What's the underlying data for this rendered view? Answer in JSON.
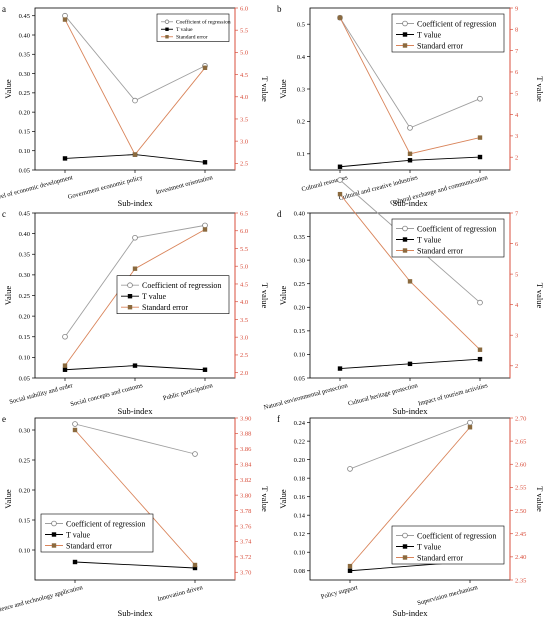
{
  "figure": {
    "panels_label": "six-panel regression figure"
  },
  "chart_data": [
    {
      "panel": "a",
      "type": "line",
      "categories": [
        "Level of economic development",
        "Government economic policy",
        "Investment orientation"
      ],
      "xlabel": "Sub-index",
      "ylabel": "Value",
      "y2label": "T value",
      "ylim": [
        0.05,
        0.47
      ],
      "yticks": [
        0.05,
        0.1,
        0.15,
        0.2,
        0.25,
        0.3,
        0.35,
        0.4,
        0.45
      ],
      "y2lim": [
        2.35,
        6.0
      ],
      "y2ticks": [
        2.5,
        3.0,
        3.5,
        4.0,
        4.5,
        5.0,
        5.5,
        6.0
      ],
      "series": [
        {
          "name": "Coefficient of regression",
          "axis": "left",
          "marker": "circle",
          "color": "#a0a0a0",
          "values": [
            0.45,
            0.23,
            0.32
          ]
        },
        {
          "name": "T value",
          "axis": "left",
          "marker": "square",
          "color": "#000000",
          "values": [
            0.08,
            0.09,
            0.07
          ]
        },
        {
          "name": "Standard error",
          "axis": "left",
          "marker": "square",
          "color": "#d9845a",
          "values": [
            0.44,
            0.09,
            0.315
          ]
        }
      ],
      "legend": "top-right",
      "legend_style": "small"
    },
    {
      "panel": "b",
      "type": "line",
      "categories": [
        "Cultural resources",
        "Cultural and creative industries",
        "Cultural exchange and communication"
      ],
      "xlabel": "Sub-index",
      "ylabel": "Value",
      "y2label": "T value",
      "ylim": [
        0.05,
        0.55
      ],
      "yticks": [
        0.1,
        0.2,
        0.3,
        0.4,
        0.5
      ],
      "y2lim": [
        1.4,
        9.0
      ],
      "y2ticks": [
        2,
        3,
        4,
        5,
        6,
        7,
        8,
        9
      ],
      "series": [
        {
          "name": "Coefficient of regression",
          "axis": "left",
          "marker": "circle",
          "color": "#a0a0a0",
          "values": [
            0.52,
            0.18,
            0.27
          ]
        },
        {
          "name": "T value",
          "axis": "left",
          "marker": "square",
          "color": "#000000",
          "values": [
            0.06,
            0.08,
            0.09
          ]
        },
        {
          "name": "Standard error",
          "axis": "left",
          "marker": "square",
          "color": "#d9845a",
          "values": [
            0.52,
            0.1,
            0.15
          ]
        }
      ],
      "legend": "top-right",
      "legend_style": "large"
    },
    {
      "panel": "c",
      "type": "line",
      "categories": [
        "Social stability and order",
        "Social concepts and customs",
        "Public participation"
      ],
      "xlabel": "Sub-index",
      "ylabel": "Value",
      "y2label": "T value",
      "ylim": [
        0.05,
        0.45
      ],
      "yticks": [
        0.05,
        0.1,
        0.15,
        0.2,
        0.25,
        0.3,
        0.35,
        0.4,
        0.45
      ],
      "y2lim": [
        1.85,
        6.5
      ],
      "y2ticks": [
        2.0,
        2.5,
        3.0,
        3.5,
        4.0,
        4.5,
        5.0,
        5.5,
        6.0,
        6.5
      ],
      "series": [
        {
          "name": "Coefficient of regression",
          "axis": "left",
          "marker": "circle",
          "color": "#a0a0a0",
          "values": [
            0.15,
            0.39,
            0.42
          ]
        },
        {
          "name": "T value",
          "axis": "left",
          "marker": "square",
          "color": "#000000",
          "values": [
            0.07,
            0.08,
            0.07
          ]
        },
        {
          "name": "Standard error",
          "axis": "left",
          "marker": "square",
          "color": "#d9845a",
          "values": [
            0.08,
            0.315,
            0.41
          ]
        }
      ],
      "legend": "middle-right",
      "legend_style": "large"
    },
    {
      "panel": "d",
      "type": "line",
      "categories": [
        "Natural environmental protection",
        "Cultural heritage protection",
        "Impact of tourism activities"
      ],
      "xlabel": "Sub-index",
      "ylabel": "Value",
      "y2label": "T value",
      "ylim": [
        0.05,
        0.4
      ],
      "yticks": [
        0.05,
        0.1,
        0.15,
        0.2,
        0.25,
        0.3,
        0.35,
        0.4
      ],
      "y2lim": [
        1.6,
        7.0
      ],
      "y2ticks": [
        2,
        3,
        4,
        5,
        6,
        7
      ],
      "series": [
        {
          "name": "Coefficient of regression",
          "axis": "left",
          "marker": "circle",
          "color": "#a0a0a0",
          "values": [
            0.47,
            0.34,
            0.21
          ]
        },
        {
          "name": "T value",
          "axis": "left",
          "marker": "square",
          "color": "#000000",
          "values": [
            0.07,
            0.08,
            0.09
          ]
        },
        {
          "name": "Standard error",
          "axis": "left",
          "marker": "square",
          "color": "#d9845a",
          "values": [
            0.44,
            0.255,
            0.11
          ]
        }
      ],
      "legend": "top-right",
      "legend_style": "large"
    },
    {
      "panel": "e",
      "type": "line",
      "categories": [
        "Science and technology application",
        "Innovation driven"
      ],
      "xlabel": "Sub-index",
      "ylabel": "Value",
      "y2label": "T value",
      "ylim": [
        0.05,
        0.32
      ],
      "yticks": [
        0.1,
        0.15,
        0.2,
        0.25,
        0.3
      ],
      "y2lim": [
        3.69,
        3.9
      ],
      "y2ticks": [
        3.7,
        3.72,
        3.74,
        3.76,
        3.78,
        3.8,
        3.82,
        3.84,
        3.86,
        3.88,
        3.9
      ],
      "series": [
        {
          "name": "Coefficient of regression",
          "axis": "left",
          "marker": "circle",
          "color": "#a0a0a0",
          "values": [
            0.31,
            0.26
          ]
        },
        {
          "name": "T value",
          "axis": "left",
          "marker": "square",
          "color": "#000000",
          "values": [
            0.08,
            0.07
          ]
        },
        {
          "name": "Standard error",
          "axis": "left",
          "marker": "square",
          "color": "#d9845a",
          "values": [
            0.3,
            0.075
          ]
        }
      ],
      "legend": "bottom-left",
      "legend_style": "large"
    },
    {
      "panel": "f",
      "type": "line",
      "categories": [
        "Policy support",
        "Supervision mechanism"
      ],
      "xlabel": "Sub-index",
      "ylabel": "Value",
      "y2label": "T value",
      "ylim": [
        0.07,
        0.245
      ],
      "yticks": [
        0.08,
        0.1,
        0.12,
        0.14,
        0.16,
        0.18,
        0.2,
        0.22,
        0.24
      ],
      "y2lim": [
        2.35,
        2.7
      ],
      "y2ticks": [
        2.35,
        2.4,
        2.45,
        2.5,
        2.55,
        2.6,
        2.65,
        2.7
      ],
      "series": [
        {
          "name": "Coefficient of regression",
          "axis": "left",
          "marker": "circle",
          "color": "#a0a0a0",
          "values": [
            0.19,
            0.24
          ]
        },
        {
          "name": "T value",
          "axis": "left",
          "marker": "square",
          "color": "#000000",
          "values": [
            0.08,
            0.09
          ]
        },
        {
          "name": "Standard error",
          "axis": "left",
          "marker": "square",
          "color": "#d9845a",
          "values": [
            0.085,
            0.235
          ]
        }
      ],
      "legend": "bottom-right",
      "legend_style": "large"
    }
  ]
}
